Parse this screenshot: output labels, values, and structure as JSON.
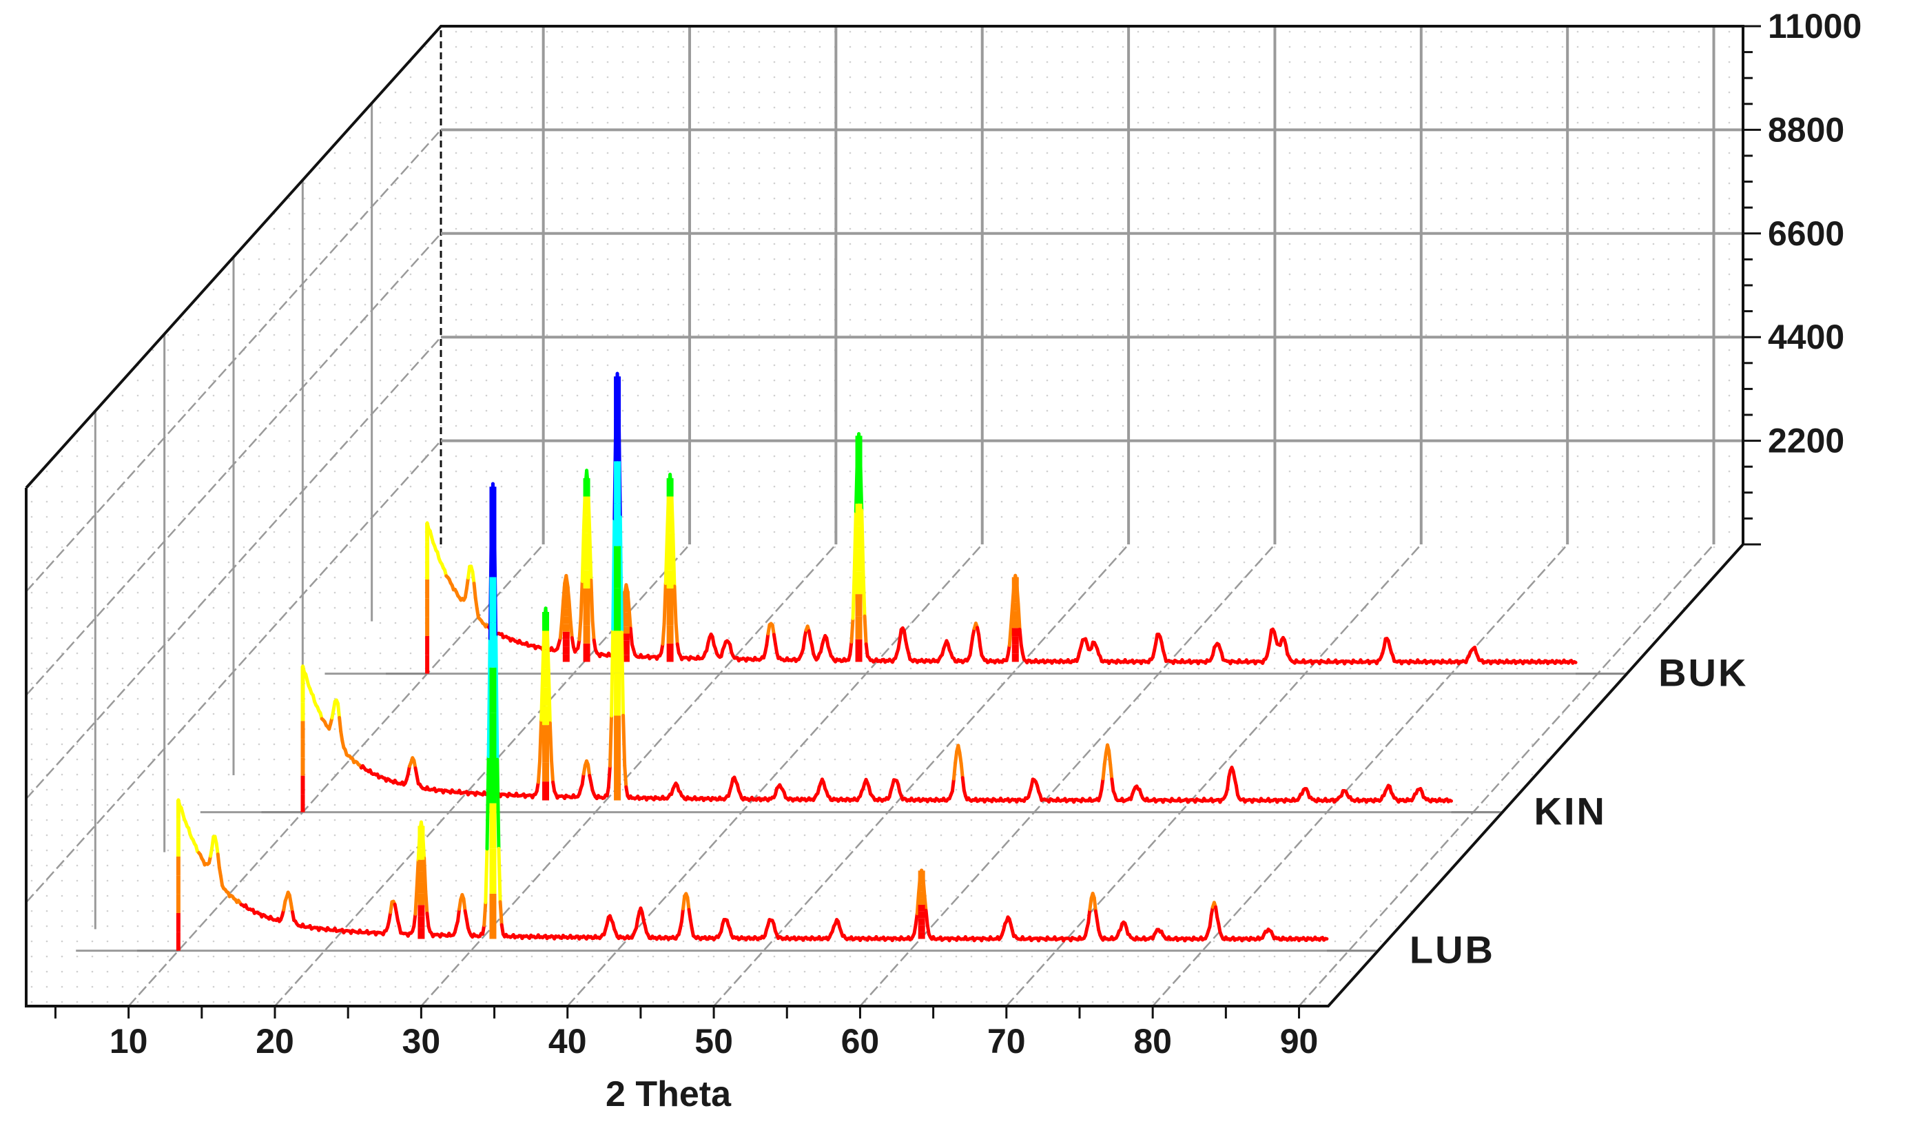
{
  "chart_data": {
    "type": "line",
    "subtype": "3d-waterfall",
    "title": "",
    "xlabel": "2 Theta",
    "ylabel": "",
    "xlim": [
      3,
      92
    ],
    "ylim": [
      0,
      11000
    ],
    "x_ticks": [
      "10",
      "20",
      "30",
      "40",
      "50",
      "60",
      "70",
      "80",
      "90"
    ],
    "z_ticks": [
      "2200",
      "4400",
      "6600",
      "8800",
      "11000"
    ],
    "grid": true,
    "colormap": [
      "#ff0000",
      "#ff8000",
      "#ffff00",
      "#00ff00",
      "#00ffff",
      "#0000ff"
    ],
    "series": [
      {
        "name": "LUB",
        "baseline": 250,
        "background": {
          "start_x": 10,
          "amplitude": 2600,
          "decay": 2.6
        },
        "peaks": [
          {
            "x": 10.0,
            "y": 3000
          },
          {
            "x": 12.5,
            "y": 900
          },
          {
            "x": 17.5,
            "y": 650
          },
          {
            "x": 24.7,
            "y": 700
          },
          {
            "x": 26.6,
            "y": 2400
          },
          {
            "x": 29.4,
            "y": 850
          },
          {
            "x": 31.5,
            "y": 9600
          },
          {
            "x": 39.5,
            "y": 450
          },
          {
            "x": 41.6,
            "y": 600
          },
          {
            "x": 44.7,
            "y": 950
          },
          {
            "x": 47.4,
            "y": 420
          },
          {
            "x": 50.5,
            "y": 420
          },
          {
            "x": 55.0,
            "y": 380
          },
          {
            "x": 60.8,
            "y": 1450
          },
          {
            "x": 66.7,
            "y": 450
          },
          {
            "x": 72.5,
            "y": 950
          },
          {
            "x": 74.6,
            "y": 350
          },
          {
            "x": 77.0,
            "y": 200
          },
          {
            "x": 80.8,
            "y": 750
          },
          {
            "x": 84.5,
            "y": 200
          },
          {
            "x": 89.0,
            "y": 180
          },
          {
            "x": 90.8,
            "y": 200
          }
        ]
      },
      {
        "name": "KIN",
        "baseline": 250,
        "background": {
          "start_x": 10,
          "amplitude": 2500,
          "decay": 2.4
        },
        "peaks": [
          {
            "x": 10.0,
            "y": 2900
          },
          {
            "x": 12.3,
            "y": 900
          },
          {
            "x": 17.5,
            "y": 600
          },
          {
            "x": 26.6,
            "y": 4000
          },
          {
            "x": 29.4,
            "y": 750
          },
          {
            "x": 31.5,
            "y": 9000
          },
          {
            "x": 35.5,
            "y": 300
          },
          {
            "x": 39.5,
            "y": 450
          },
          {
            "x": 42.6,
            "y": 300
          },
          {
            "x": 45.5,
            "y": 400
          },
          {
            "x": 48.5,
            "y": 400
          },
          {
            "x": 50.5,
            "y": 450
          },
          {
            "x": 54.8,
            "y": 1150
          },
          {
            "x": 60.0,
            "y": 450
          },
          {
            "x": 65.0,
            "y": 1150
          },
          {
            "x": 67.0,
            "y": 300
          },
          {
            "x": 73.5,
            "y": 700
          },
          {
            "x": 78.5,
            "y": 250
          },
          {
            "x": 81.2,
            "y": 200
          },
          {
            "x": 84.2,
            "y": 300
          },
          {
            "x": 86.3,
            "y": 250
          }
        ]
      },
      {
        "name": "BUK",
        "baseline": 250,
        "background": {
          "start_x": 10,
          "amplitude": 2600,
          "decay": 2.5
        },
        "peaks": [
          {
            "x": 10.0,
            "y": 3200
          },
          {
            "x": 13.0,
            "y": 1000
          },
          {
            "x": 19.5,
            "y": 1600
          },
          {
            "x": 20.9,
            "y": 3900
          },
          {
            "x": 23.6,
            "y": 1500
          },
          {
            "x": 26.6,
            "y": 3900
          },
          {
            "x": 29.4,
            "y": 500
          },
          {
            "x": 30.5,
            "y": 400
          },
          {
            "x": 33.5,
            "y": 800
          },
          {
            "x": 36.0,
            "y": 700
          },
          {
            "x": 37.2,
            "y": 500
          },
          {
            "x": 39.5,
            "y": 4800
          },
          {
            "x": 42.5,
            "y": 700
          },
          {
            "x": 45.5,
            "y": 400
          },
          {
            "x": 47.5,
            "y": 800
          },
          {
            "x": 50.2,
            "y": 1800
          },
          {
            "x": 54.9,
            "y": 500
          },
          {
            "x": 55.6,
            "y": 400
          },
          {
            "x": 60.0,
            "y": 600
          },
          {
            "x": 64.0,
            "y": 400
          },
          {
            "x": 67.8,
            "y": 700
          },
          {
            "x": 68.5,
            "y": 500
          },
          {
            "x": 75.6,
            "y": 500
          },
          {
            "x": 81.5,
            "y": 300
          },
          {
            "x": 90.3,
            "y": 200
          }
        ]
      }
    ]
  }
}
